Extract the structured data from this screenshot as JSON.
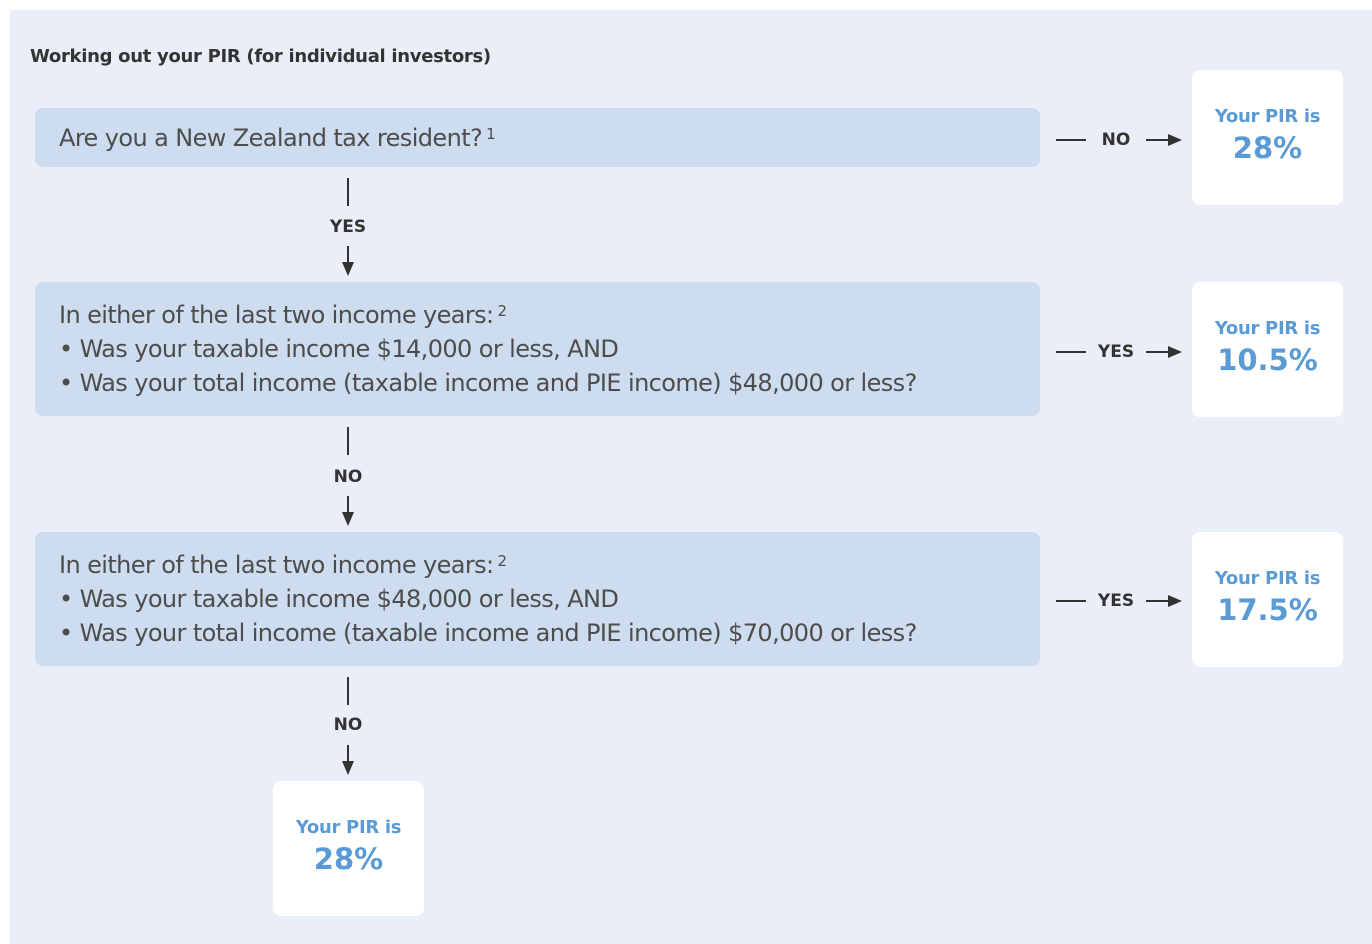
{
  "title": "Working out your PIR (for individual investors)",
  "questions": [
    {
      "heading": "Are you a New Zealand tax resident?",
      "footnote": "1"
    },
    {
      "heading": "In either of the last two income years:",
      "footnote": "2",
      "bullets": [
        "• Was your taxable income $14,000 or less, AND",
        "• Was your total income (taxable income and PIE income) $48,000 or less?"
      ]
    },
    {
      "heading": "In either of the last two income years:",
      "footnote": "2",
      "bullets": [
        "• Was your taxable income $48,000 or less, AND",
        "• Was your total income (taxable income and PIE income) $70,000 or less?"
      ]
    }
  ],
  "results": [
    {
      "label": "Your PIR is",
      "rate": "28%"
    },
    {
      "label": "Your PIR is",
      "rate": "10.5%"
    },
    {
      "label": "Your PIR is",
      "rate": "17.5%"
    },
    {
      "label": "Your PIR is",
      "rate": "28%"
    }
  ],
  "edges": [
    {
      "from": 0,
      "label": "NO",
      "direction": "right"
    },
    {
      "from": 0,
      "label": "YES",
      "direction": "down"
    },
    {
      "from": 1,
      "label": "YES",
      "direction": "right"
    },
    {
      "from": 1,
      "label": "NO",
      "direction": "down"
    },
    {
      "from": 2,
      "label": "YES",
      "direction": "right"
    },
    {
      "from": 2,
      "label": "NO",
      "direction": "down"
    }
  ]
}
